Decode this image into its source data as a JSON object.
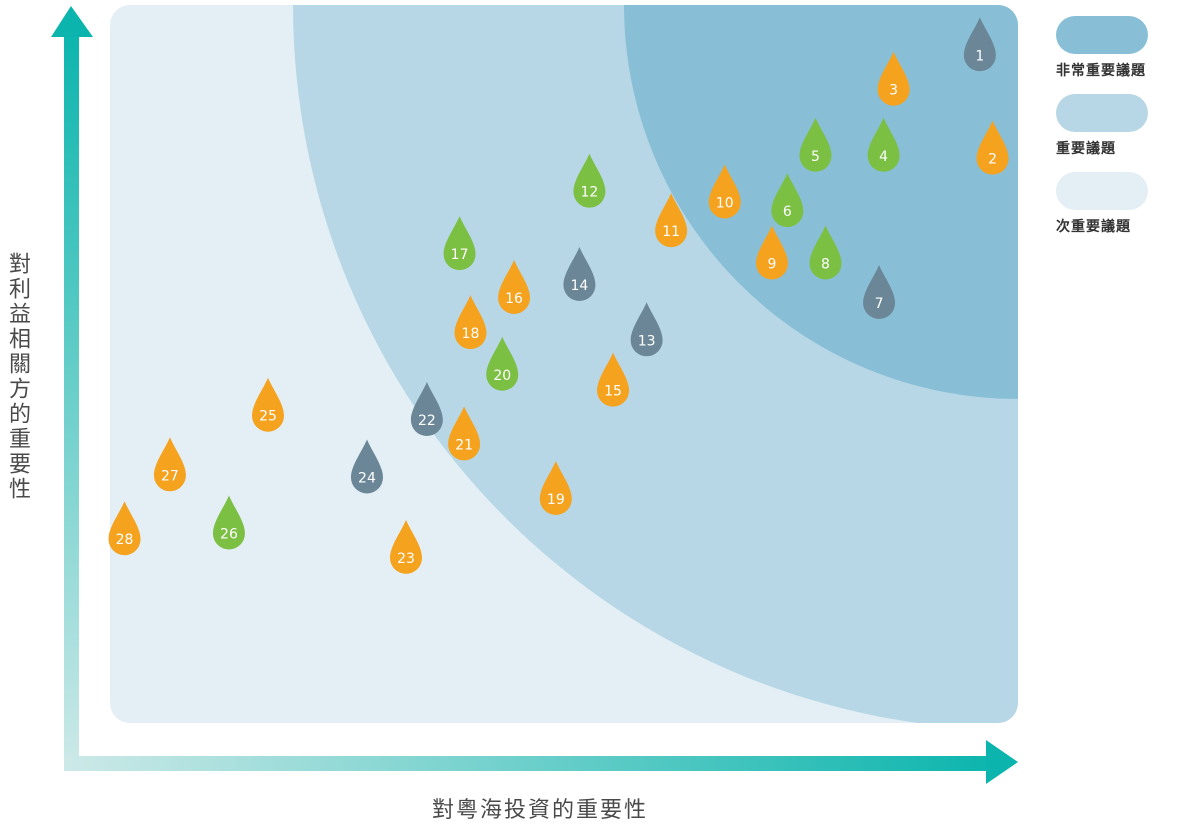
{
  "chart_data": {
    "type": "scatter",
    "xlabel": "對粵海投資的重要性",
    "ylabel": "對利益相關方的重要性",
    "legend": {
      "placement": "top-right",
      "items": [
        {
          "label": "非常重要議題",
          "color": "#88bfd6"
        },
        {
          "label": "重要議題",
          "color": "#b7d7e6"
        },
        {
          "label": "次重要議題",
          "color": "#e3eff5"
        }
      ]
    },
    "category_colors": {
      "orange": "#f5a21f",
      "green": "#7bbf43",
      "slate": "#6b8797"
    },
    "xlim": [
      0,
      100
    ],
    "ylim": [
      0,
      100
    ],
    "points": [
      {
        "label": "1",
        "x": 95.8,
        "y": 93.0,
        "color": "slate"
      },
      {
        "label": "2",
        "x": 97.2,
        "y": 78.6,
        "color": "orange"
      },
      {
        "label": "3",
        "x": 86.3,
        "y": 88.2,
        "color": "orange"
      },
      {
        "label": "4",
        "x": 85.2,
        "y": 79.0,
        "color": "green"
      },
      {
        "label": "5",
        "x": 77.7,
        "y": 79.0,
        "color": "green"
      },
      {
        "label": "6",
        "x": 74.6,
        "y": 71.3,
        "color": "green"
      },
      {
        "label": "7",
        "x": 84.7,
        "y": 58.5,
        "color": "slate"
      },
      {
        "label": "8",
        "x": 78.8,
        "y": 64.0,
        "color": "green"
      },
      {
        "label": "9",
        "x": 72.9,
        "y": 64.0,
        "color": "orange"
      },
      {
        "label": "10",
        "x": 67.7,
        "y": 72.5,
        "color": "orange"
      },
      {
        "label": "11",
        "x": 61.8,
        "y": 68.5,
        "color": "orange"
      },
      {
        "label": "12",
        "x": 52.8,
        "y": 74.0,
        "color": "green"
      },
      {
        "label": "13",
        "x": 59.1,
        "y": 53.3,
        "color": "slate"
      },
      {
        "label": "14",
        "x": 51.7,
        "y": 61.0,
        "color": "slate"
      },
      {
        "label": "15",
        "x": 55.4,
        "y": 46.3,
        "color": "orange"
      },
      {
        "label": "16",
        "x": 44.5,
        "y": 59.2,
        "color": "orange"
      },
      {
        "label": "17",
        "x": 38.5,
        "y": 65.3,
        "color": "green"
      },
      {
        "label": "18",
        "x": 39.7,
        "y": 54.3,
        "color": "orange"
      },
      {
        "label": "19",
        "x": 49.1,
        "y": 31.2,
        "color": "orange"
      },
      {
        "label": "20",
        "x": 43.2,
        "y": 48.5,
        "color": "green"
      },
      {
        "label": "21",
        "x": 39.0,
        "y": 38.8,
        "color": "orange"
      },
      {
        "label": "22",
        "x": 34.9,
        "y": 42.2,
        "color": "slate"
      },
      {
        "label": "23",
        "x": 32.6,
        "y": 23.0,
        "color": "orange"
      },
      {
        "label": "24",
        "x": 28.3,
        "y": 34.2,
        "color": "slate"
      },
      {
        "label": "25",
        "x": 17.4,
        "y": 42.8,
        "color": "orange"
      },
      {
        "label": "26",
        "x": 13.1,
        "y": 26.4,
        "color": "green"
      },
      {
        "label": "27",
        "x": 6.6,
        "y": 34.5,
        "color": "orange"
      },
      {
        "label": "28",
        "x": 1.6,
        "y": 25.6,
        "color": "orange"
      }
    ]
  }
}
